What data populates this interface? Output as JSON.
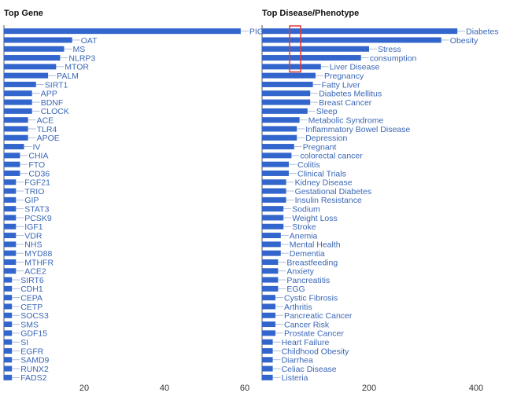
{
  "colors": {
    "bar": "#3366cc",
    "label": "#3a67b6",
    "highlight": "#e53935"
  },
  "chart_data": [
    {
      "type": "bar",
      "orientation": "horizontal",
      "title": "Top Gene",
      "xlim": [
        0,
        60
      ],
      "xticks": [
        20,
        40,
        60
      ],
      "categories": [
        "PIG",
        "OAT",
        "MS",
        "NLRP3",
        "MTOR",
        "PALM",
        "SIRT1",
        "APP",
        "BDNF",
        "CLOCK",
        "ACE",
        "TLR4",
        "APOE",
        "IV",
        "CHIA",
        "FTO",
        "CD36",
        "FGF21",
        "TRIO",
        "GIP",
        "STAT3",
        "PCSK9",
        "IGF1",
        "VDR",
        "NHS",
        "MYD88",
        "MTHFR",
        "ACE2",
        "SIRT6",
        "CDH1",
        "CEPA",
        "CETP",
        "SOCS3",
        "SMS",
        "GDF15",
        "SI",
        "EGFR",
        "SAMD9",
        "RUNX2",
        "FADS2"
      ],
      "values": [
        59,
        17,
        15,
        14,
        13,
        11,
        8,
        7,
        7,
        7,
        6,
        6,
        6,
        5,
        4,
        4,
        4,
        3,
        3,
        3,
        3,
        3,
        3,
        3,
        3,
        3,
        3,
        3,
        2,
        2,
        2,
        2,
        2,
        2,
        2,
        2,
        2,
        2,
        2,
        2
      ]
    },
    {
      "type": "bar",
      "orientation": "horizontal",
      "title": "Top Disease/Phenotype",
      "xlim": [
        0,
        400
      ],
      "xticks": [
        200,
        400
      ],
      "categories": [
        "Diabetes",
        "Obesity",
        "Stress",
        "consumption",
        "Liver Disease",
        "Pregnancy",
        "Fatty Liver",
        "Diabetes Mellitus",
        "Breast Cancer",
        "Sleep",
        "Metabolic Syndrome",
        "Inflammatory Bowel Disease",
        "Depression",
        "Pregnant",
        "colorectal cancer",
        "Colitis",
        "Clinical Trials",
        "Kidney Disease",
        "Gestational Diabetes",
        "Insulin Resistance",
        "Sodium",
        "Weight Loss",
        "Stroke",
        "Anemia",
        "Mental Health",
        "Dementia",
        "Breastfeeding",
        "Anxiety",
        "Pancreatitis",
        "EGG",
        "Cystic Fibrosis",
        "Arthritis",
        "Pancreatic Cancer",
        "Cancer Risk",
        "Prostate Cancer",
        "Heart Failure",
        "Childhood Obesity",
        "Diarrhea",
        "Celiac Disease",
        "Listeria"
      ],
      "values": [
        365,
        335,
        200,
        185,
        110,
        100,
        95,
        90,
        90,
        85,
        70,
        65,
        65,
        60,
        55,
        50,
        50,
        45,
        45,
        45,
        40,
        40,
        40,
        35,
        35,
        35,
        30,
        30,
        30,
        30,
        25,
        25,
        25,
        25,
        25,
        20,
        20,
        20,
        20,
        20
      ],
      "annotation": "red outlined rectangle spanning the Diabetes to Liver Disease rows"
    }
  ]
}
